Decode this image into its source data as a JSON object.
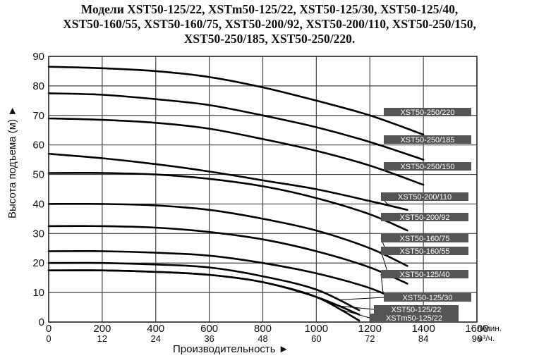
{
  "title_lines": [
    "Модели XST50-125/22, XSTm50-125/22, XST50-125/30, XST50-125/40,",
    "XST50-160/55, XST50-160/75, XST50-200/92, XST50-200/110, XST50-250/150,",
    "XST50-250/185, XST50-250/220."
  ],
  "chart_data": {
    "type": "line",
    "xlabel": "Производительность ►",
    "ylabel": "Высота подъема (м) ►",
    "x_unit": "л/мин.",
    "x2_unit": "м³/ч.",
    "xlim": [
      0,
      1600
    ],
    "ylim": [
      0,
      90
    ],
    "x_ticks": [
      "0",
      "200",
      "400",
      "600",
      "800",
      "1000",
      "1200",
      "1400",
      "1600"
    ],
    "x2_ticks": [
      "0",
      "12",
      "24",
      "36",
      "48",
      "60",
      "72",
      "84",
      "96"
    ],
    "y_ticks": [
      "0",
      "10",
      "20",
      "30",
      "40",
      "50",
      "60",
      "70",
      "80",
      "90"
    ],
    "grid": true,
    "series": [
      {
        "name": "XST50-250/220",
        "x": [
          0,
          200,
          400,
          600,
          800,
          1000,
          1200,
          1400
        ],
        "y": [
          86.5,
          86,
          85,
          83,
          79.5,
          75,
          70,
          63.5
        ]
      },
      {
        "name": "XST50-250/185",
        "x": [
          0,
          200,
          400,
          600,
          800,
          1000,
          1200,
          1400
        ],
        "y": [
          77.5,
          77,
          75.5,
          73.5,
          70,
          66,
          61,
          55
        ]
      },
      {
        "name": "XST50-250/150",
        "x": [
          0,
          200,
          400,
          600,
          800,
          1000,
          1200,
          1400
        ],
        "y": [
          69,
          68.5,
          67.5,
          65.5,
          62,
          58,
          53,
          46.5
        ]
      },
      {
        "name": "XST50-200/110",
        "x": [
          0,
          200,
          400,
          600,
          800,
          1000,
          1200,
          1340
        ],
        "y": [
          57,
          55.5,
          53.5,
          51,
          48,
          45,
          41,
          38
        ]
      },
      {
        "name": "XST50-200/92",
        "x": [
          0,
          200,
          400,
          600,
          800,
          1000,
          1200,
          1340
        ],
        "y": [
          50.5,
          50.5,
          50,
          48.5,
          46,
          42,
          36.5,
          31
        ]
      },
      {
        "name": "XST50-160/75",
        "x": [
          0,
          200,
          400,
          600,
          800,
          1000,
          1200,
          1340
        ],
        "y": [
          40,
          40,
          39.5,
          38,
          35,
          31,
          25,
          19
        ]
      },
      {
        "name": "XST50-160/55",
        "x": [
          0,
          200,
          400,
          600,
          800,
          1000,
          1200,
          1340
        ],
        "y": [
          32.5,
          32.5,
          32,
          30.5,
          28,
          24,
          18.5,
          13
        ]
      },
      {
        "name": "XST50-125/40",
        "x": [
          0,
          200,
          400,
          600,
          800,
          1000,
          1200,
          1300
        ],
        "y": [
          24,
          24,
          23.5,
          22.5,
          20,
          16.5,
          11.5,
          7.5
        ]
      },
      {
        "name": "XST50-125/30",
        "x": [
          0,
          200,
          400,
          600,
          800,
          1000,
          1160
        ],
        "y": [
          20,
          20,
          19.5,
          18.5,
          15.5,
          11,
          4
        ]
      },
      {
        "name": "XST50-125/22",
        "x": [
          0,
          200,
          400,
          600,
          800,
          1000,
          1160
        ],
        "y": [
          17.5,
          17.5,
          17,
          16,
          13.5,
          8.5,
          2.5
        ]
      },
      {
        "name": "XSTm50-125/22",
        "x": [
          0,
          200,
          400,
          600,
          800,
          1000,
          1160
        ],
        "y": [
          17.5,
          17.5,
          17,
          16,
          13.5,
          8.5,
          0.5
        ]
      }
    ]
  }
}
